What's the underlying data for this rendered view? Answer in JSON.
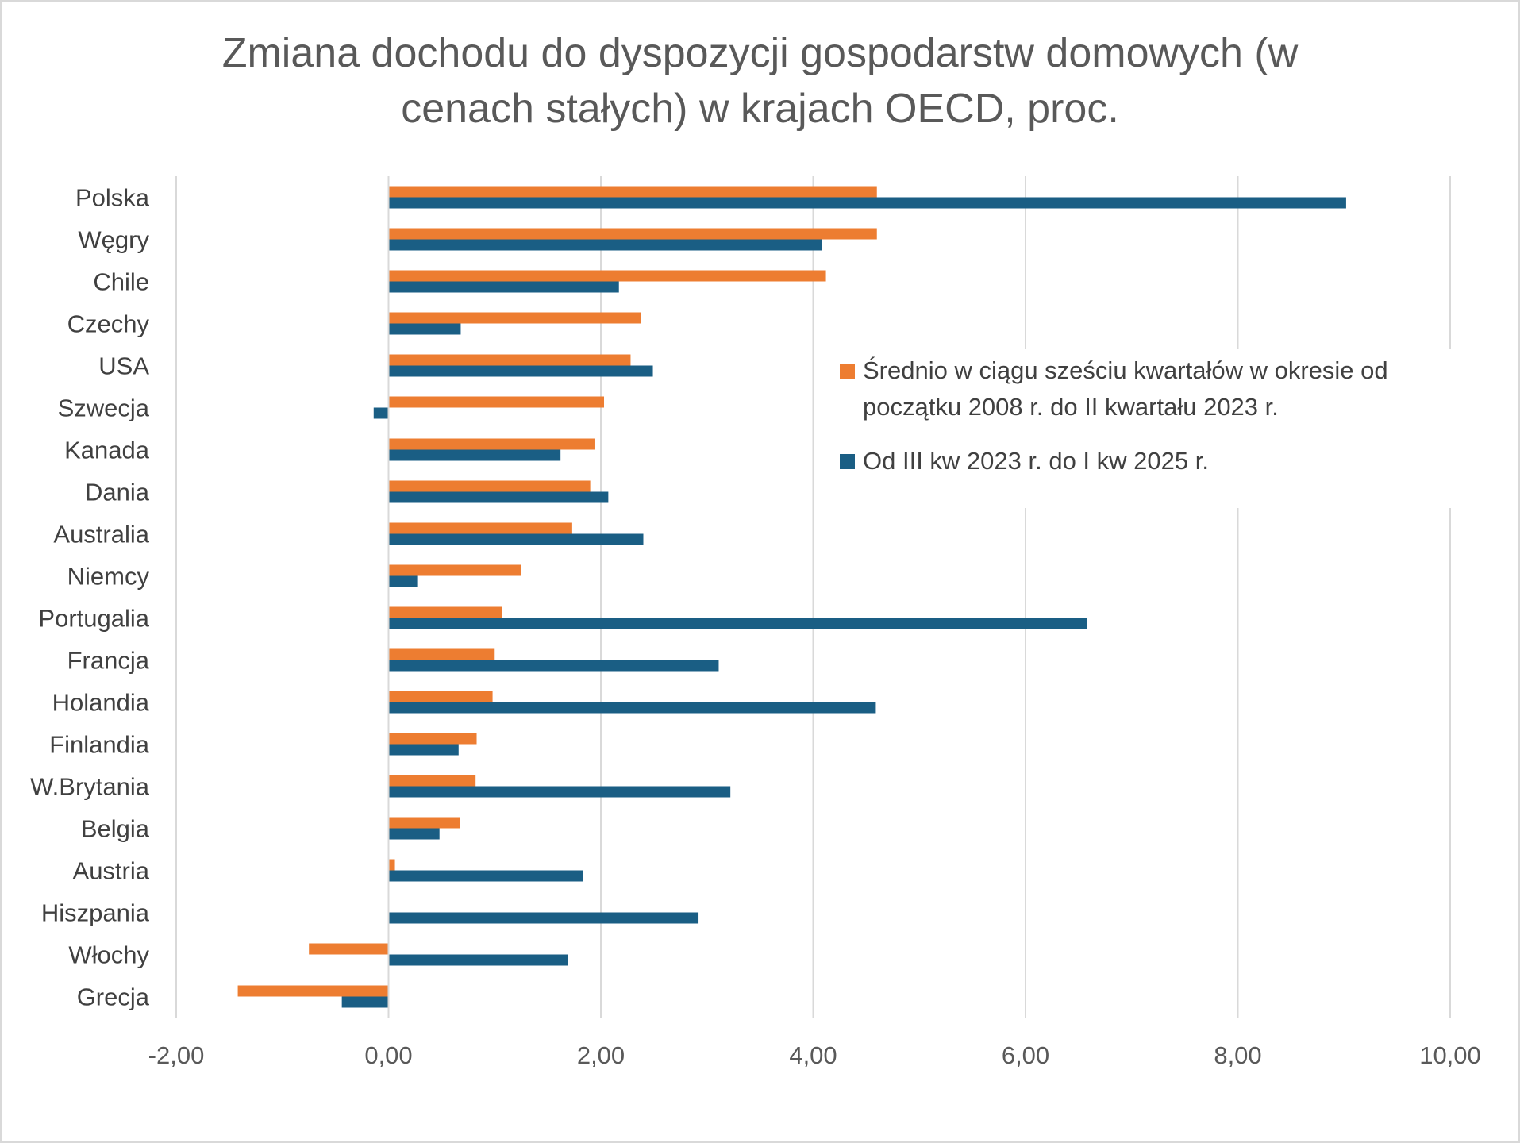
{
  "chart_data": {
    "type": "bar",
    "orientation": "horizontal",
    "title": "Zmiana dochodu do dyspozycji gospodarstw domowych (w cenach stałych) w krajach OECD, proc.",
    "title_lines": [
      "Zmiana dochodu do dyspozycji gospodarstw domowych (w",
      "cenach stałych) w krajach OECD, proc."
    ],
    "categories": [
      "Polska",
      "Węgry",
      "Chile",
      "Czechy",
      "USA",
      "Szwecja",
      "Kanada",
      "Dania",
      "Australia",
      "Niemcy",
      "Portugalia",
      "Francja",
      "Holandia",
      "Finlandia",
      "W.Brytania",
      "Belgia",
      "Austria",
      "Hiszpania",
      "Włochy",
      "Grecja"
    ],
    "series": [
      {
        "name": "Średnio w ciągu sześciu kwartałów w okresie od początku 2008 r. do II kwartału 2023 r.",
        "name_lines": [
          "Średnio w ciągu sześciu kwartałów w okresie od",
          "początku 2008 r. do II kwartału 2023 r."
        ],
        "color": "#ED7D31",
        "values": [
          4.6,
          4.6,
          4.12,
          2.38,
          2.28,
          2.03,
          1.94,
          1.9,
          1.73,
          1.25,
          1.07,
          1.0,
          0.98,
          0.83,
          0.82,
          0.67,
          0.06,
          0.0,
          -0.75,
          -1.42
        ]
      },
      {
        "name": "Od III kw 2023 r. do I kw 2025 r.",
        "name_lines": [
          "Od III kw 2023 r. do I kw 2025 r."
        ],
        "color": "#1A5E84",
        "values": [
          9.02,
          4.08,
          2.17,
          0.68,
          2.49,
          -0.14,
          1.62,
          2.07,
          2.4,
          0.27,
          6.58,
          3.11,
          4.59,
          0.66,
          3.22,
          0.48,
          1.83,
          2.92,
          1.69,
          -0.44
        ]
      }
    ],
    "xlim": [
      -2,
      10
    ],
    "xticks": [
      -2,
      0,
      2,
      4,
      6,
      8,
      10
    ],
    "xtick_labels": [
      "-2,00",
      "0,00",
      "2,00",
      "4,00",
      "6,00",
      "8,00",
      "10,00"
    ],
    "grid": true,
    "legend_position": "right-upper",
    "xlabel": "",
    "ylabel": ""
  }
}
